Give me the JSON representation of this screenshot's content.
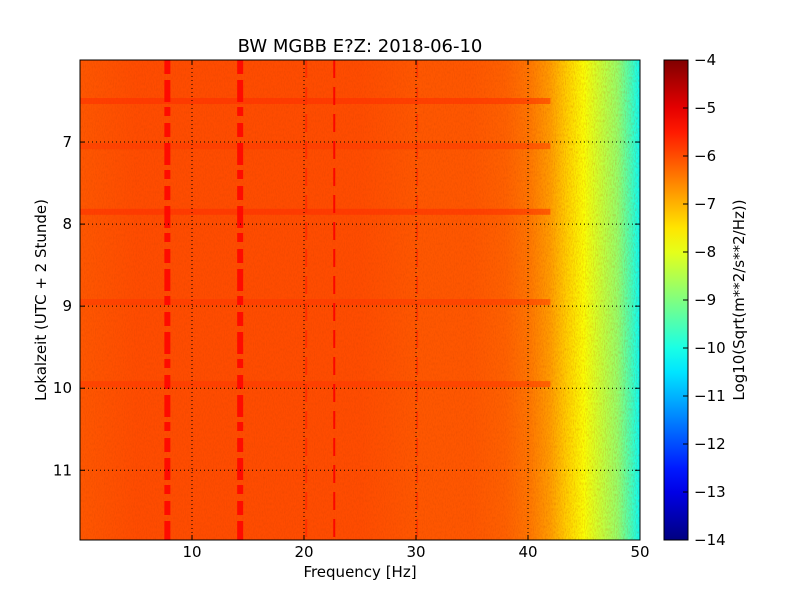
{
  "chart_data": {
    "type": "heatmap",
    "title": "BW MGBB E?Z: 2018-06-10",
    "xlabel": "Frequency [Hz]",
    "ylabel": "Lokalzeit (UTC + 2 Stunde)",
    "xlim": [
      0,
      50
    ],
    "ylim": [
      6.0,
      11.85
    ],
    "y_inverted": true,
    "x_ticks": [
      10,
      20,
      30,
      40,
      50
    ],
    "y_ticks": [
      7,
      8,
      9,
      10,
      11
    ],
    "grid": true,
    "colormap": "jet",
    "colorbar": {
      "label": "Log10(Sqrt(m**2/s**2/Hz))",
      "range": [
        -14,
        -4
      ],
      "ticks": [
        -4,
        -5,
        -6,
        -7,
        -8,
        -9,
        -10,
        -11,
        -12,
        -13,
        -14
      ]
    },
    "spectral_profile": [
      {
        "freq": 0,
        "value": -6.1
      },
      {
        "freq": 5,
        "value": -6.0
      },
      {
        "freq": 10,
        "value": -6.0
      },
      {
        "freq": 15,
        "value": -6.0
      },
      {
        "freq": 20,
        "value": -6.0
      },
      {
        "freq": 25,
        "value": -6.0
      },
      {
        "freq": 30,
        "value": -6.1
      },
      {
        "freq": 35,
        "value": -6.1
      },
      {
        "freq": 38,
        "value": -6.2
      },
      {
        "freq": 40,
        "value": -6.4
      },
      {
        "freq": 42,
        "value": -6.8
      },
      {
        "freq": 43.5,
        "value": -7.3
      },
      {
        "freq": 45,
        "value": -7.8
      },
      {
        "freq": 46.5,
        "value": -8.3
      },
      {
        "freq": 48,
        "value": -8.8
      },
      {
        "freq": 49.5,
        "value": -9.8
      },
      {
        "freq": 50,
        "value": -10.2
      }
    ],
    "spectral_lines": [
      {
        "freq": 7.8,
        "value": -5.3
      },
      {
        "freq": 14.3,
        "value": -5.3
      },
      {
        "freq": 20.2,
        "value": -5.7
      },
      {
        "freq": 22.7,
        "value": -5.2
      },
      {
        "freq": 30.1,
        "value": -5.8
      }
    ],
    "event_rows": [
      {
        "time": 6.5,
        "value": -5.7
      },
      {
        "time": 7.05,
        "value": -5.8
      },
      {
        "time": 7.85,
        "value": -5.7
      },
      {
        "time": 8.95,
        "value": -5.8
      },
      {
        "time": 9.95,
        "value": -5.8
      }
    ]
  }
}
